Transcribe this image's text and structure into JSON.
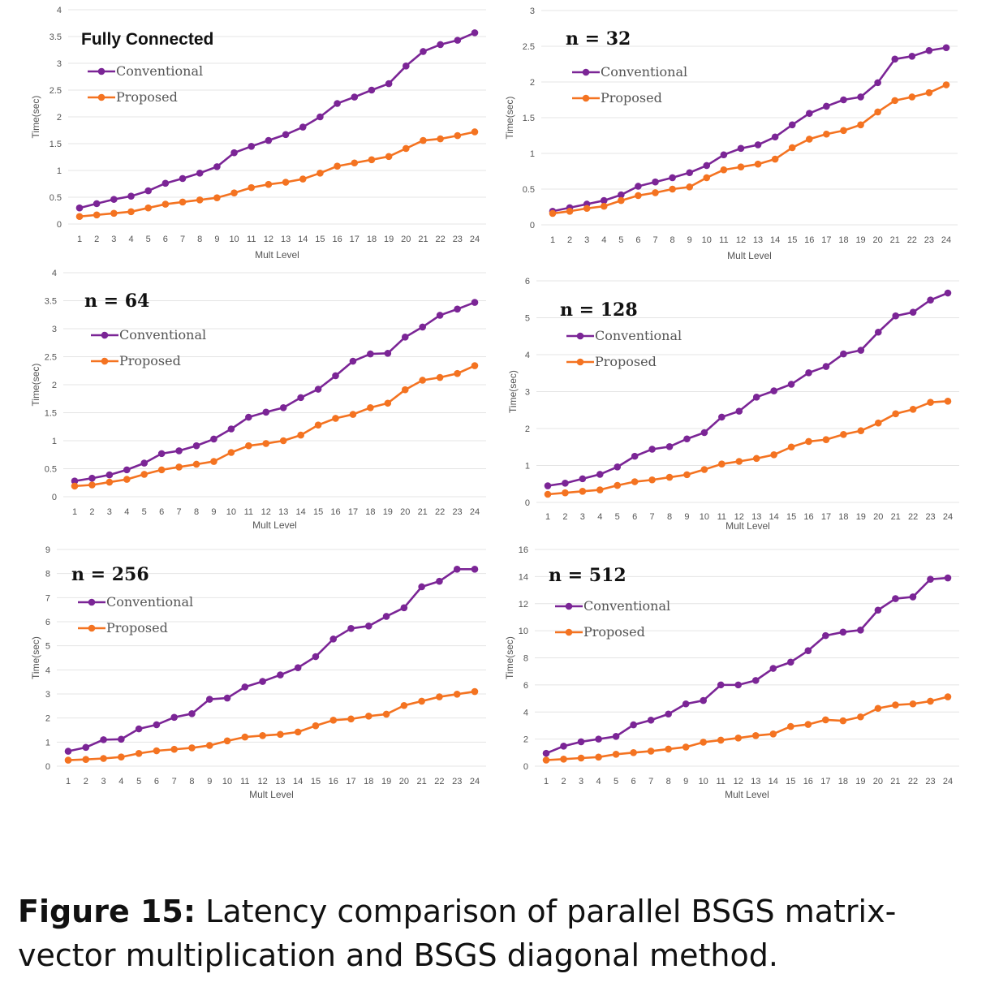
{
  "colors": {
    "conventional": "#7B2596",
    "proposed": "#F47321",
    "grid": "#e4e4e4"
  },
  "caption": {
    "label": "Figure 15:",
    "text": "Latency comparison of parallel BSGS matrix-vector multiplication and BSGS diagonal method."
  },
  "chart_data": [
    {
      "type": "line",
      "title": "Fully Connected",
      "xlabel": "Mult Level",
      "ylabel": "Time(sec)",
      "x": [
        1,
        2,
        3,
        4,
        5,
        6,
        7,
        8,
        9,
        10,
        11,
        12,
        13,
        14,
        15,
        16,
        17,
        18,
        19,
        20,
        21,
        22,
        23,
        24
      ],
      "ylim": [
        0,
        4
      ],
      "yticks": [
        "0",
        "0.5",
        "1",
        "1.5",
        "2",
        "2.5",
        "3",
        "3.5",
        "4"
      ],
      "grid": true,
      "legend": "top-left",
      "series": [
        {
          "name": "Conventional",
          "values": [
            0.3,
            0.38,
            0.46,
            0.52,
            0.62,
            0.76,
            0.85,
            0.95,
            1.07,
            1.33,
            1.45,
            1.56,
            1.67,
            1.81,
            2.0,
            2.25,
            2.37,
            2.5,
            2.62,
            2.95,
            3.22,
            3.35,
            3.43,
            3.57
          ]
        },
        {
          "name": "Proposed",
          "values": [
            0.14,
            0.17,
            0.2,
            0.23,
            0.3,
            0.37,
            0.41,
            0.45,
            0.49,
            0.58,
            0.68,
            0.74,
            0.78,
            0.84,
            0.95,
            1.08,
            1.14,
            1.2,
            1.26,
            1.41,
            1.56,
            1.59,
            1.65,
            1.72
          ]
        }
      ]
    },
    {
      "type": "line",
      "title": "n = 32",
      "xlabel": "Mult Level",
      "ylabel": "Time(sec)",
      "x": [
        1,
        2,
        3,
        4,
        5,
        6,
        7,
        8,
        9,
        10,
        11,
        12,
        13,
        14,
        15,
        16,
        17,
        18,
        19,
        20,
        21,
        22,
        23,
        24
      ],
      "ylim": [
        0,
        3
      ],
      "yticks": [
        "0",
        "0.5",
        "1",
        "1.5",
        "2",
        "2.5",
        "3"
      ],
      "grid": true,
      "legend": "top-left",
      "series": [
        {
          "name": "Conventional",
          "values": [
            0.19,
            0.24,
            0.29,
            0.34,
            0.42,
            0.54,
            0.6,
            0.66,
            0.73,
            0.83,
            0.98,
            1.07,
            1.12,
            1.23,
            1.4,
            1.56,
            1.66,
            1.75,
            1.79,
            1.99,
            2.32,
            2.36,
            2.44,
            2.48
          ]
        },
        {
          "name": "Proposed",
          "values": [
            0.16,
            0.19,
            0.23,
            0.26,
            0.34,
            0.41,
            0.45,
            0.5,
            0.53,
            0.66,
            0.77,
            0.81,
            0.85,
            0.92,
            1.08,
            1.2,
            1.27,
            1.32,
            1.4,
            1.58,
            1.74,
            1.79,
            1.85,
            1.96
          ]
        }
      ]
    },
    {
      "type": "line",
      "title": "n = 64",
      "xlabel": "Mult Level",
      "ylabel": "Time(sec)",
      "x": [
        1,
        2,
        3,
        4,
        5,
        6,
        7,
        8,
        9,
        10,
        11,
        12,
        13,
        14,
        15,
        16,
        17,
        18,
        19,
        20,
        21,
        22,
        23,
        24
      ],
      "ylim": [
        0,
        4
      ],
      "yticks": [
        "0",
        "0.5",
        "1",
        "1.5",
        "2",
        "2.5",
        "3",
        "3.5",
        "4"
      ],
      "grid": true,
      "legend": "top-left",
      "series": [
        {
          "name": "Conventional",
          "values": [
            0.28,
            0.33,
            0.39,
            0.48,
            0.6,
            0.77,
            0.82,
            0.91,
            1.03,
            1.21,
            1.42,
            1.51,
            1.59,
            1.77,
            1.92,
            2.16,
            2.42,
            2.55,
            2.56,
            2.85,
            3.03,
            3.24,
            3.35,
            3.47
          ]
        },
        {
          "name": "Proposed",
          "values": [
            0.19,
            0.21,
            0.26,
            0.31,
            0.4,
            0.48,
            0.53,
            0.58,
            0.63,
            0.79,
            0.91,
            0.95,
            1.0,
            1.1,
            1.28,
            1.4,
            1.47,
            1.59,
            1.67,
            1.91,
            2.08,
            2.13,
            2.2,
            2.34
          ]
        }
      ]
    },
    {
      "type": "line",
      "title": "n = 128",
      "xlabel": "Mult Level",
      "ylabel": "Time(sec)",
      "x": [
        1,
        2,
        3,
        4,
        5,
        6,
        7,
        8,
        9,
        10,
        11,
        12,
        13,
        14,
        15,
        16,
        17,
        18,
        19,
        20,
        21,
        22,
        23,
        24
      ],
      "ylim": [
        0,
        6
      ],
      "yticks": [
        "0",
        "1",
        "2",
        "3",
        "4",
        "5",
        "6"
      ],
      "grid": true,
      "legend": "top-left",
      "series": [
        {
          "name": "Conventional",
          "values": [
            0.45,
            0.52,
            0.64,
            0.76,
            0.96,
            1.25,
            1.44,
            1.51,
            1.72,
            1.89,
            2.31,
            2.47,
            2.85,
            3.02,
            3.2,
            3.51,
            3.68,
            4.02,
            4.12,
            4.61,
            5.05,
            5.15,
            5.48,
            5.67
          ]
        },
        {
          "name": "Proposed",
          "values": [
            0.22,
            0.26,
            0.3,
            0.34,
            0.46,
            0.56,
            0.61,
            0.68,
            0.75,
            0.89,
            1.04,
            1.11,
            1.19,
            1.29,
            1.5,
            1.65,
            1.7,
            1.84,
            1.94,
            2.15,
            2.4,
            2.52,
            2.71,
            2.74
          ]
        }
      ]
    },
    {
      "type": "line",
      "title": "n = 256",
      "xlabel": "Mult Level",
      "ylabel": "Time(sec)",
      "x": [
        1,
        2,
        3,
        4,
        5,
        6,
        7,
        8,
        9,
        10,
        11,
        12,
        13,
        14,
        15,
        16,
        17,
        18,
        19,
        20,
        21,
        22,
        23,
        24
      ],
      "ylim": [
        0,
        9
      ],
      "yticks": [
        "0",
        "1",
        "2",
        "3",
        "4",
        "5",
        "6",
        "7",
        "8",
        "9"
      ],
      "grid": true,
      "legend": "top-left",
      "series": [
        {
          "name": "Conventional",
          "values": [
            0.62,
            0.78,
            1.1,
            1.12,
            1.55,
            1.72,
            2.03,
            2.18,
            2.78,
            2.83,
            3.29,
            3.52,
            3.79,
            4.09,
            4.55,
            5.28,
            5.72,
            5.82,
            6.22,
            6.58,
            7.45,
            7.68,
            8.18,
            8.18
          ]
        },
        {
          "name": "Proposed",
          "values": [
            0.25,
            0.28,
            0.32,
            0.38,
            0.53,
            0.64,
            0.7,
            0.76,
            0.86,
            1.05,
            1.21,
            1.27,
            1.32,
            1.42,
            1.68,
            1.91,
            1.96,
            2.08,
            2.16,
            2.52,
            2.7,
            2.88,
            2.99,
            3.1
          ]
        }
      ]
    },
    {
      "type": "line",
      "title": "n = 512",
      "xlabel": "Mult Level",
      "ylabel": "Time(sec)",
      "x": [
        1,
        2,
        3,
        4,
        5,
        6,
        7,
        8,
        9,
        10,
        11,
        12,
        13,
        14,
        15,
        16,
        17,
        18,
        19,
        20,
        21,
        22,
        23,
        24
      ],
      "ylim": [
        0,
        16
      ],
      "yticks": [
        "0",
        "2",
        "4",
        "6",
        "8",
        "10",
        "12",
        "14",
        "16"
      ],
      "grid": true,
      "legend": "top-left",
      "series": [
        {
          "name": "Conventional",
          "values": [
            0.95,
            1.48,
            1.8,
            2.0,
            2.2,
            3.05,
            3.4,
            3.85,
            4.6,
            4.85,
            6.0,
            6.0,
            6.33,
            7.22,
            7.68,
            8.53,
            9.64,
            9.9,
            10.05,
            11.52,
            12.37,
            12.5,
            13.8,
            13.9
          ]
        },
        {
          "name": "Proposed",
          "values": [
            0.45,
            0.52,
            0.6,
            0.67,
            0.88,
            1.0,
            1.11,
            1.26,
            1.41,
            1.77,
            1.92,
            2.08,
            2.26,
            2.38,
            2.93,
            3.08,
            3.42,
            3.35,
            3.64,
            4.27,
            4.52,
            4.6,
            4.8,
            5.12
          ]
        }
      ]
    }
  ]
}
